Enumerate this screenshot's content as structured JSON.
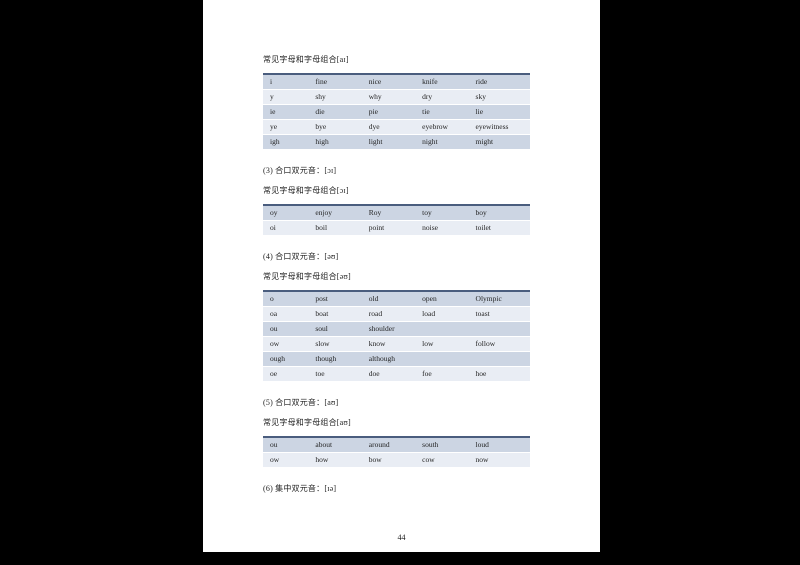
{
  "document": {
    "page_number": "44",
    "blocks": [
      {
        "type": "sub-heading",
        "text": "常见字母和字母组合[aɪ]"
      },
      {
        "type": "table",
        "rows": [
          [
            "i",
            "fine",
            "nice",
            "knife",
            "ride"
          ],
          [
            "y",
            "shy",
            "why",
            "dry",
            "sky"
          ],
          [
            "ie",
            "die",
            "pie",
            "tie",
            "lie"
          ],
          [
            "ye",
            "bye",
            "dye",
            "eyebrow",
            "eyewitness"
          ],
          [
            "igh",
            "high",
            "light",
            "night",
            "might"
          ]
        ]
      },
      {
        "type": "section-heading",
        "text": "(3) 合口双元音：[ɔɪ]"
      },
      {
        "type": "sub-heading",
        "text": "常见字母和字母组合[ɔɪ]"
      },
      {
        "type": "table",
        "rows": [
          [
            "oy",
            "enjoy",
            "Roy",
            "toy",
            "boy"
          ],
          [
            "oi",
            "boil",
            "point",
            "noise",
            "toilet"
          ]
        ]
      },
      {
        "type": "section-heading",
        "text": "(4) 合口双元音：[əʊ]"
      },
      {
        "type": "sub-heading",
        "text": "常见字母和字母组合[əʊ]"
      },
      {
        "type": "table",
        "rows": [
          [
            "o",
            "post",
            "old",
            "open",
            "Olympic"
          ],
          [
            "oa",
            "boat",
            "road",
            "load",
            "toast"
          ],
          [
            "ou",
            "soul",
            "shoulder",
            "",
            ""
          ],
          [
            "ow",
            "slow",
            "know",
            "low",
            "follow"
          ],
          [
            "ough",
            "though",
            "although",
            "",
            ""
          ],
          [
            "oe",
            "toe",
            "doe",
            "foe",
            "hoe"
          ]
        ]
      },
      {
        "type": "section-heading",
        "text": "(5) 合口双元音：[aʊ]"
      },
      {
        "type": "sub-heading",
        "text": "常见字母和字母组合[aʊ]"
      },
      {
        "type": "table",
        "rows": [
          [
            "ou",
            "about",
            "around",
            "south",
            "loud"
          ],
          [
            "ow",
            "how",
            "bow",
            "cow",
            "now"
          ]
        ]
      },
      {
        "type": "section-heading",
        "text": "(6) 集中双元音：[ɪə]"
      }
    ],
    "table_column_widths": [
      "17%",
      "20%",
      "20%",
      "20%",
      "23%"
    ]
  },
  "colors": {
    "canvas_bg": "#000000",
    "page_bg": "#ffffff",
    "row_dark": "#ccd5e3",
    "row_light": "#e9edf4",
    "table_top_border": "#4a5d7e",
    "table_bottom_border": "#b0bac9",
    "text": "#1f1f1f"
  }
}
